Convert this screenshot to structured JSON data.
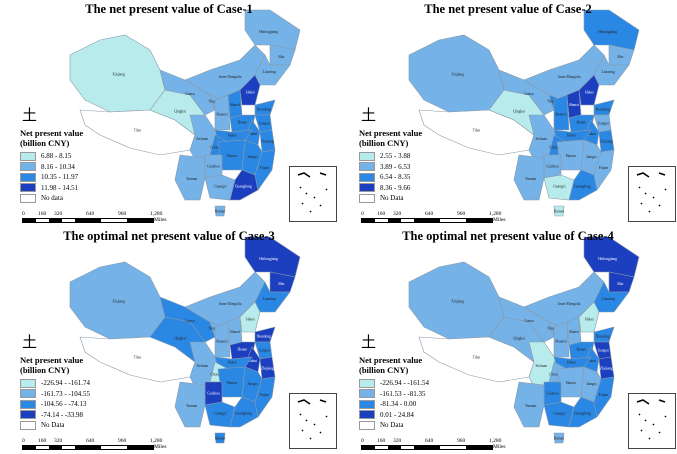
{
  "colors": {
    "c0": "#b8ecec",
    "c1": "#74b2e8",
    "c2": "#2a88e4",
    "c3": "#1c3fc0",
    "nodata": "#ffffff",
    "border": "#8a9aa8"
  },
  "legend_title_1": "Net present value",
  "legend_title_2": "(billion CNY)",
  "scale": {
    "ticks": [
      "0",
      "160",
      "320",
      "640",
      "960",
      "1,280"
    ],
    "unit": "Miles"
  },
  "provinces": [
    "Xinjiang",
    "Tibet",
    "Qinghai",
    "Gansu",
    "Inner Mongolia",
    "Heilongjiang",
    "Jilin",
    "Liaoning",
    "Ningxia",
    "Shaanxi",
    "Shanxi",
    "Hebei",
    "Shandong",
    "Henan",
    "Jiangsu",
    "Anhui",
    "Hubei",
    "Sichuan",
    "Chongqing",
    "Zhejiang",
    "Jiangxi",
    "Hunan",
    "Guizhou",
    "Yunnan",
    "Guangxi",
    "Guangdong",
    "Fujian",
    "Hainan"
  ],
  "maps": [
    {
      "title": "The net present value of Case-1",
      "legend": [
        "6.88 - 8.15",
        "8.16 - 10.34",
        "10.35 - 11.97",
        "11.98 - 14.51",
        "No data"
      ],
      "classes": [
        0,
        -1,
        0,
        1,
        1,
        1,
        1,
        1,
        1,
        1,
        2,
        3,
        2,
        2,
        2,
        2,
        2,
        1,
        2,
        2,
        2,
        2,
        1,
        1,
        1,
        3,
        2,
        1
      ]
    },
    {
      "title": "The net present value of Case-2",
      "legend": [
        "2.55 - 3.88",
        "3.89 - 6.53",
        "6.54 - 8.35",
        "8.36 - 9.66",
        "No Data"
      ],
      "classes": [
        1,
        -1,
        0,
        1,
        1,
        2,
        1,
        1,
        2,
        2,
        3,
        3,
        2,
        2,
        1,
        2,
        2,
        1,
        2,
        2,
        1,
        1,
        1,
        1,
        0,
        2,
        1,
        0
      ]
    },
    {
      "title": "The optimal net present value of Case-3",
      "legend": [
        "-226.94 - -161.74",
        "-161.73 - -104.55",
        "-104.56 - -74.13",
        "-74.14 - -33.98",
        "No Data"
      ],
      "classes": [
        1,
        -1,
        2,
        2,
        1,
        3,
        3,
        2,
        1,
        1,
        1,
        0,
        3,
        3,
        2,
        3,
        2,
        1,
        0,
        3,
        2,
        2,
        3,
        1,
        2,
        2,
        2,
        2
      ]
    },
    {
      "title": "The optimal net present value of Case-4",
      "legend": [
        "-226.94 - -161.54",
        "-161.53 - -81.35",
        "-81.34 - 0.00",
        "0.01 - 24.84",
        "No Data"
      ],
      "classes": [
        1,
        -1,
        1,
        1,
        1,
        3,
        3,
        2,
        1,
        1,
        1,
        0,
        2,
        2,
        3,
        2,
        2,
        0,
        1,
        3,
        1,
        1,
        2,
        1,
        2,
        2,
        2,
        1
      ]
    }
  ]
}
